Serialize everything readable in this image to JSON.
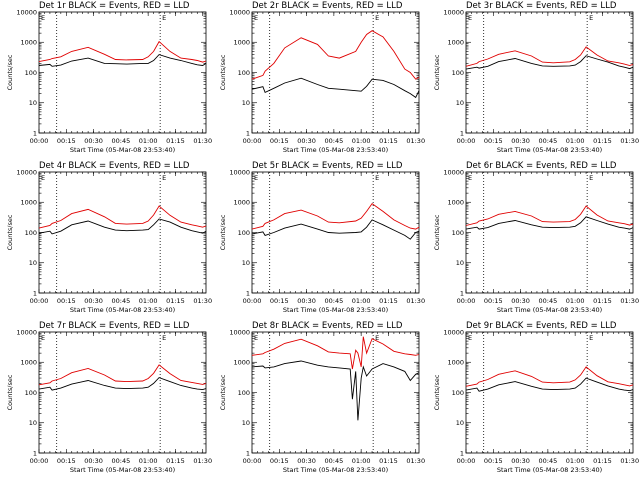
{
  "figure": {
    "xlabel": "Start Time (05-Mar-08 23:53:40)",
    "ylabel": "Counts/sec",
    "x_ticks": [
      "00:00",
      "00:15",
      "00:30",
      "00:45",
      "01:00",
      "01:15",
      "01:30"
    ],
    "y_ticks": [
      "1",
      "10",
      "100",
      "1000",
      "10000"
    ],
    "corner_marks": {
      "left": "E",
      "right": "E"
    },
    "colors": {
      "events": "#000000",
      "lld": "#e00000"
    }
  },
  "chart_data": [
    {
      "type": "line",
      "title": "Det 1r BLACK = Events, RED = LLD",
      "xlabel": "Start Time (05-Mar-08 23:53:40)",
      "ylabel": "Counts/sec",
      "xlim": [
        0,
        1.53
      ],
      "ylim": [
        1,
        10000
      ],
      "yscale": "log",
      "markers_x": [
        0.162,
        1.11
      ],
      "series": [
        {
          "name": "Events",
          "color": "#000000",
          "x": [
            0,
            0.1,
            0.12,
            0.2,
            0.3,
            0.45,
            0.6,
            0.7,
            0.8,
            0.95,
            1.0,
            1.05,
            1.1,
            1.2,
            1.3,
            1.4,
            1.45,
            1.5,
            1.53
          ],
          "values": [
            170,
            185,
            160,
            175,
            240,
            300,
            200,
            195,
            190,
            200,
            200,
            250,
            390,
            300,
            250,
            200,
            180,
            170,
            200
          ]
        },
        {
          "name": "LLD",
          "color": "#e00000",
          "x": [
            0,
            0.1,
            0.12,
            0.2,
            0.3,
            0.45,
            0.6,
            0.7,
            0.8,
            0.95,
            1.0,
            1.05,
            1.1,
            1.2,
            1.3,
            1.4,
            1.45,
            1.5,
            1.53
          ],
          "values": [
            230,
            270,
            290,
            330,
            500,
            680,
            400,
            270,
            260,
            270,
            330,
            500,
            1050,
            500,
            300,
            270,
            250,
            220,
            240
          ]
        }
      ]
    },
    {
      "type": "line",
      "title": "Det 2r BLACK = Events, RED = LLD",
      "xlabel": "Start Time (05-Mar-08 23:53:40)",
      "ylabel": "Counts/sec",
      "xlim": [
        0,
        1.53
      ],
      "ylim": [
        1,
        10000
      ],
      "yscale": "log",
      "markers_x": [
        0.162,
        1.11
      ],
      "series": [
        {
          "name": "Events",
          "color": "#000000",
          "x": [
            0,
            0.1,
            0.12,
            0.2,
            0.3,
            0.45,
            0.6,
            0.7,
            0.8,
            0.95,
            1.0,
            1.05,
            1.1,
            1.2,
            1.3,
            1.4,
            1.45,
            1.5,
            1.53
          ],
          "values": [
            28,
            34,
            22,
            30,
            45,
            65,
            40,
            30,
            28,
            25,
            24,
            35,
            60,
            55,
            40,
            25,
            20,
            15,
            25
          ]
        },
        {
          "name": "LLD",
          "color": "#e00000",
          "x": [
            0,
            0.1,
            0.12,
            0.2,
            0.3,
            0.45,
            0.6,
            0.7,
            0.8,
            0.95,
            1.0,
            1.05,
            1.1,
            1.2,
            1.3,
            1.4,
            1.45,
            1.5,
            1.53
          ],
          "values": [
            60,
            80,
            110,
            200,
            650,
            1400,
            850,
            350,
            300,
            500,
            1000,
            1800,
            2400,
            1500,
            500,
            130,
            100,
            60,
            70
          ]
        }
      ]
    },
    {
      "type": "line",
      "title": "Det 3r BLACK = Events, RED = LLD",
      "xlabel": "Start Time (05-Mar-08 23:53:40)",
      "ylabel": "Counts/sec",
      "xlim": [
        0,
        1.53
      ],
      "ylim": [
        1,
        10000
      ],
      "yscale": "log",
      "markers_x": [
        0.162,
        1.11
      ],
      "series": [
        {
          "name": "Events",
          "color": "#000000",
          "x": [
            0,
            0.1,
            0.12,
            0.2,
            0.3,
            0.45,
            0.6,
            0.7,
            0.8,
            0.95,
            1.0,
            1.05,
            1.1,
            1.2,
            1.3,
            1.4,
            1.45,
            1.5,
            1.53
          ],
          "values": [
            130,
            150,
            140,
            160,
            230,
            290,
            200,
            165,
            160,
            165,
            175,
            230,
            360,
            280,
            220,
            165,
            150,
            135,
            150
          ]
        },
        {
          "name": "LLD",
          "color": "#e00000",
          "x": [
            0,
            0.1,
            0.12,
            0.2,
            0.3,
            0.45,
            0.6,
            0.7,
            0.8,
            0.95,
            1.0,
            1.05,
            1.1,
            1.2,
            1.3,
            1.4,
            1.45,
            1.5,
            1.53
          ],
          "values": [
            160,
            200,
            230,
            280,
            400,
            520,
            350,
            220,
            210,
            225,
            270,
            380,
            700,
            380,
            240,
            210,
            190,
            170,
            185
          ]
        }
      ]
    },
    {
      "type": "line",
      "title": "Det 4r BLACK = Events, RED = LLD",
      "xlabel": "Start Time (05-Mar-08 23:53:40)",
      "ylabel": "Counts/sec",
      "xlim": [
        0,
        1.53
      ],
      "ylim": [
        1,
        10000
      ],
      "yscale": "log",
      "markers_x": [
        0.162,
        1.11
      ],
      "series": [
        {
          "name": "Events",
          "color": "#000000",
          "x": [
            0,
            0.1,
            0.12,
            0.2,
            0.3,
            0.45,
            0.6,
            0.7,
            0.8,
            0.95,
            1.0,
            1.05,
            1.1,
            1.2,
            1.3,
            1.4,
            1.45,
            1.5,
            1.53
          ],
          "values": [
            95,
            110,
            90,
            110,
            180,
            240,
            150,
            120,
            115,
            120,
            125,
            180,
            280,
            220,
            150,
            115,
            105,
            95,
            110
          ]
        },
        {
          "name": "LLD",
          "color": "#e00000",
          "x": [
            0,
            0.1,
            0.12,
            0.2,
            0.3,
            0.45,
            0.6,
            0.7,
            0.8,
            0.95,
            1.0,
            1.05,
            1.1,
            1.2,
            1.3,
            1.4,
            1.45,
            1.5,
            1.53
          ],
          "values": [
            140,
            170,
            200,
            250,
            420,
            580,
            330,
            200,
            190,
            200,
            240,
            380,
            750,
            370,
            220,
            180,
            165,
            150,
            165
          ]
        }
      ]
    },
    {
      "type": "line",
      "title": "Det 5r BLACK = Events, RED = LLD",
      "xlabel": "Start Time (05-Mar-08 23:53:40)",
      "ylabel": "Counts/sec",
      "xlim": [
        0,
        1.53
      ],
      "ylim": [
        1,
        10000
      ],
      "yscale": "log",
      "markers_x": [
        0.162,
        1.11
      ],
      "series": [
        {
          "name": "Events",
          "color": "#000000",
          "x": [
            0,
            0.1,
            0.12,
            0.2,
            0.3,
            0.45,
            0.6,
            0.7,
            0.8,
            0.95,
            1.0,
            1.05,
            1.1,
            1.2,
            1.3,
            1.4,
            1.45,
            1.5,
            1.53
          ],
          "values": [
            90,
            105,
            80,
            100,
            140,
            190,
            130,
            100,
            95,
            100,
            105,
            150,
            260,
            180,
            120,
            80,
            60,
            100,
            110
          ]
        },
        {
          "name": "LLD",
          "color": "#e00000",
          "x": [
            0,
            0.1,
            0.12,
            0.2,
            0.3,
            0.45,
            0.6,
            0.7,
            0.8,
            0.95,
            1.0,
            1.05,
            1.1,
            1.2,
            1.3,
            1.4,
            1.45,
            1.5,
            1.53
          ],
          "values": [
            130,
            160,
            200,
            260,
            420,
            550,
            350,
            220,
            210,
            240,
            300,
            500,
            900,
            500,
            260,
            170,
            140,
            130,
            150
          ]
        }
      ]
    },
    {
      "type": "line",
      "title": "Det 6r BLACK = Events, RED = LLD",
      "xlabel": "Start Time (05-Mar-08 23:53:40)",
      "ylabel": "Counts/sec",
      "xlim": [
        0,
        1.53
      ],
      "ylim": [
        1,
        10000
      ],
      "yscale": "log",
      "markers_x": [
        0.162,
        1.11
      ],
      "series": [
        {
          "name": "Events",
          "color": "#000000",
          "x": [
            0,
            0.1,
            0.12,
            0.2,
            0.3,
            0.45,
            0.6,
            0.7,
            0.8,
            0.95,
            1.0,
            1.05,
            1.1,
            1.2,
            1.3,
            1.4,
            1.45,
            1.5,
            1.53
          ],
          "values": [
            130,
            150,
            130,
            145,
            200,
            250,
            180,
            150,
            145,
            150,
            160,
            210,
            330,
            250,
            190,
            150,
            140,
            130,
            145
          ]
        },
        {
          "name": "LLD",
          "color": "#e00000",
          "x": [
            0,
            0.1,
            0.12,
            0.2,
            0.3,
            0.45,
            0.6,
            0.7,
            0.8,
            0.95,
            1.0,
            1.05,
            1.1,
            1.2,
            1.3,
            1.4,
            1.45,
            1.5,
            1.53
          ],
          "values": [
            170,
            210,
            240,
            280,
            400,
            500,
            350,
            230,
            220,
            230,
            270,
            400,
            750,
            380,
            240,
            210,
            195,
            175,
            190
          ]
        }
      ]
    },
    {
      "type": "line",
      "title": "Det 7r BLACK = Events, RED = LLD",
      "xlabel": "Start Time (05-Mar-08 23:53:40)",
      "ylabel": "Counts/sec",
      "xlim": [
        0,
        1.53
      ],
      "ylim": [
        1,
        10000
      ],
      "yscale": "log",
      "markers_x": [
        0.162,
        1.11
      ],
      "series": [
        {
          "name": "Events",
          "color": "#000000",
          "x": [
            0,
            0.1,
            0.12,
            0.2,
            0.3,
            0.45,
            0.6,
            0.7,
            0.8,
            0.95,
            1.0,
            1.05,
            1.1,
            1.2,
            1.3,
            1.4,
            1.45,
            1.5,
            1.53
          ],
          "values": [
            130,
            150,
            120,
            140,
            190,
            250,
            170,
            140,
            135,
            140,
            150,
            200,
            310,
            230,
            170,
            140,
            130,
            125,
            135
          ]
        },
        {
          "name": "LLD",
          "color": "#e00000",
          "x": [
            0,
            0.1,
            0.12,
            0.2,
            0.3,
            0.45,
            0.6,
            0.7,
            0.8,
            0.95,
            1.0,
            1.05,
            1.1,
            1.2,
            1.3,
            1.4,
            1.45,
            1.5,
            1.53
          ],
          "values": [
            180,
            210,
            240,
            290,
            450,
            620,
            380,
            240,
            230,
            240,
            290,
            430,
            820,
            420,
            250,
            215,
            200,
            185,
            200
          ]
        }
      ]
    },
    {
      "type": "line",
      "title": "Det 8r BLACK = Events, RED = LLD",
      "xlabel": "Start Time (05-Mar-08 23:53:40)",
      "ylabel": "Counts/sec",
      "xlim": [
        0,
        1.53
      ],
      "ylim": [
        1,
        10000
      ],
      "yscale": "log",
      "markers_x": [
        0.162,
        1.11
      ],
      "series": [
        {
          "name": "Events",
          "color": "#000000",
          "x": [
            0,
            0.1,
            0.12,
            0.2,
            0.3,
            0.45,
            0.6,
            0.7,
            0.8,
            0.9,
            0.92,
            0.95,
            0.97,
            1.0,
            1.02,
            1.05,
            1.1,
            1.2,
            1.3,
            1.4,
            1.45,
            1.5,
            1.53
          ],
          "values": [
            700,
            750,
            650,
            700,
            900,
            1100,
            800,
            700,
            650,
            600,
            60,
            500,
            12,
            300,
            700,
            350,
            600,
            900,
            700,
            500,
            250,
            400,
            450
          ]
        },
        {
          "name": "LLD",
          "color": "#e00000",
          "x": [
            0,
            0.1,
            0.12,
            0.2,
            0.3,
            0.45,
            0.6,
            0.7,
            0.8,
            0.9,
            0.92,
            0.95,
            0.97,
            1.0,
            1.02,
            1.05,
            1.1,
            1.2,
            1.3,
            1.4,
            1.45,
            1.5,
            1.53
          ],
          "values": [
            1700,
            1900,
            2100,
            2700,
            4200,
            5800,
            3500,
            2200,
            2000,
            1900,
            600,
            2500,
            2000,
            700,
            7000,
            2000,
            6000,
            4000,
            2300,
            1900,
            1800,
            1700,
            1800
          ]
        }
      ]
    },
    {
      "type": "line",
      "title": "Det 9r BLACK = Events, RED = LLD",
      "xlabel": "Start Time (05-Mar-08 23:53:40)",
      "ylabel": "Counts/sec",
      "xlim": [
        0,
        1.53
      ],
      "ylim": [
        1,
        10000
      ],
      "yscale": "log",
      "markers_x": [
        0.162,
        1.11
      ],
      "series": [
        {
          "name": "Events",
          "color": "#000000",
          "x": [
            0,
            0.1,
            0.12,
            0.2,
            0.3,
            0.45,
            0.6,
            0.7,
            0.8,
            0.95,
            1.0,
            1.05,
            1.1,
            1.2,
            1.3,
            1.4,
            1.45,
            1.5,
            1.53
          ],
          "values": [
            120,
            140,
            110,
            130,
            180,
            230,
            160,
            130,
            125,
            130,
            140,
            190,
            300,
            220,
            165,
            130,
            120,
            115,
            125
          ]
        },
        {
          "name": "LLD",
          "color": "#e00000",
          "x": [
            0,
            0.1,
            0.12,
            0.2,
            0.3,
            0.45,
            0.6,
            0.7,
            0.8,
            0.95,
            1.0,
            1.05,
            1.1,
            1.2,
            1.3,
            1.4,
            1.45,
            1.5,
            1.53
          ],
          "values": [
            160,
            190,
            220,
            270,
            400,
            520,
            340,
            220,
            210,
            220,
            260,
            380,
            700,
            360,
            225,
            195,
            180,
            165,
            180
          ]
        }
      ]
    }
  ]
}
